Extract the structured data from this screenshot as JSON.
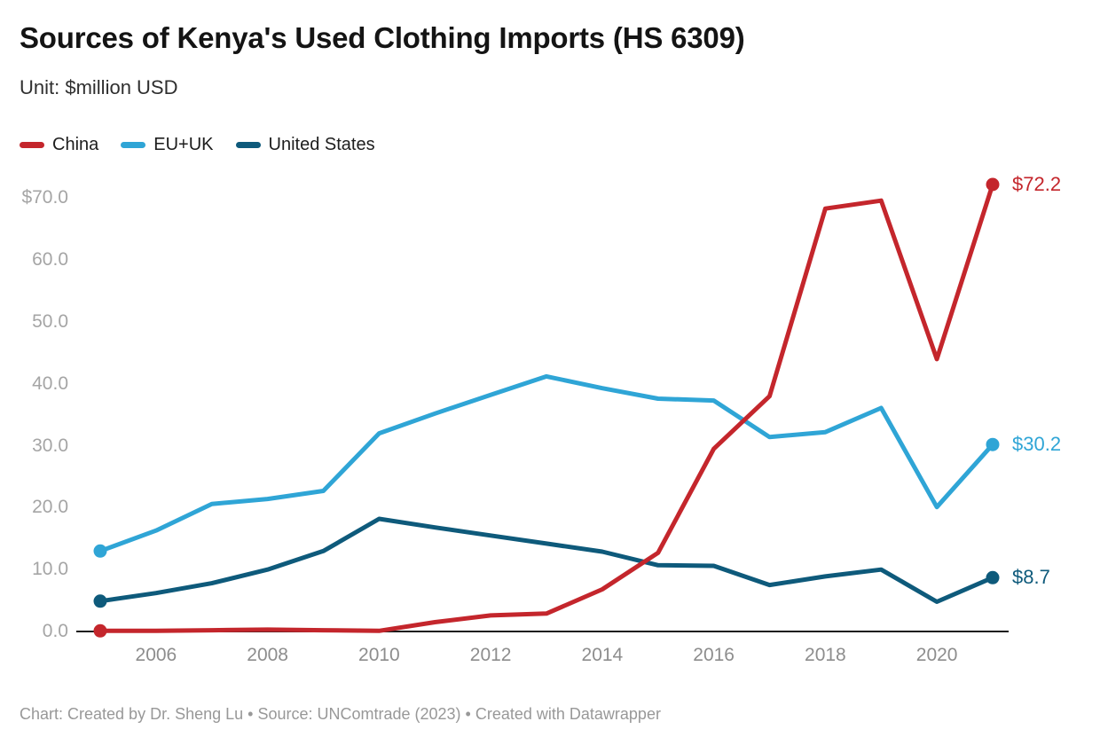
{
  "header": {
    "title": "Sources of Kenya's Used Clothing Imports (HS 6309)",
    "subtitle": "Unit: $million USD"
  },
  "footer": {
    "text": "Chart: Created by Dr. Sheng Lu • Source: UNComtrade (2023) • Created with Datawrapper"
  },
  "colors": {
    "china": "#c4262c",
    "eu_uk": "#2fa5d6",
    "united_states": "#0e5a7b",
    "axis_line": "#1a1a1a",
    "y_tick_text": "#a5a5a5",
    "x_tick_text": "#8d8d8d"
  },
  "chart_data": {
    "type": "line",
    "title": "Sources of Kenya's Used Clothing Imports (HS 6309)",
    "unit": "$million USD",
    "xlabel": "",
    "ylabel": "$million USD",
    "grid": false,
    "legend_position": "top-left",
    "x": [
      2005,
      2006,
      2007,
      2008,
      2009,
      2010,
      2011,
      2012,
      2013,
      2014,
      2015,
      2016,
      2017,
      2018,
      2019,
      2020,
      2021
    ],
    "series": [
      {
        "name": "China",
        "color": "#c4262c",
        "end_label": "$72.2",
        "values": [
          0.1,
          0.1,
          0.2,
          0.3,
          0.2,
          0.1,
          1.5,
          2.6,
          2.9,
          6.8,
          12.7,
          29.5,
          38.0,
          68.3,
          69.6,
          44.0,
          72.2
        ]
      },
      {
        "name": "EU+UK",
        "color": "#2fa5d6",
        "end_label": "$30.2",
        "values": [
          13.0,
          16.3,
          20.6,
          21.4,
          22.7,
          32.0,
          35.2,
          38.2,
          41.2,
          39.3,
          37.6,
          37.3,
          31.4,
          32.2,
          36.1,
          20.1,
          30.2
        ]
      },
      {
        "name": "United States",
        "color": "#0e5a7b",
        "end_label": "$8.7",
        "values": [
          4.9,
          6.2,
          7.8,
          10.0,
          13.0,
          18.2,
          16.8,
          15.5,
          14.2,
          12.9,
          10.7,
          10.6,
          7.5,
          8.9,
          10.0,
          4.8,
          8.7
        ]
      }
    ],
    "x_ticks": [
      {
        "year": 2006,
        "label": "2006"
      },
      {
        "year": 2008,
        "label": "2008"
      },
      {
        "year": 2010,
        "label": "2010"
      },
      {
        "year": 2012,
        "label": "2012"
      },
      {
        "year": 2014,
        "label": "2014"
      },
      {
        "year": 2016,
        "label": "2016"
      },
      {
        "year": 2018,
        "label": "2018"
      },
      {
        "year": 2020,
        "label": "2020"
      }
    ],
    "y_ticks": [
      {
        "value": 70,
        "label": "$70.0"
      },
      {
        "value": 60,
        "label": "60.0"
      },
      {
        "value": 50,
        "label": "50.0"
      },
      {
        "value": 40,
        "label": "40.0"
      },
      {
        "value": 30,
        "label": "30.0"
      },
      {
        "value": 20,
        "label": "20.0"
      },
      {
        "value": 10,
        "label": "10.0"
      },
      {
        "value": 0,
        "label": "0.0"
      }
    ],
    "xlim": [
      2005,
      2021
    ],
    "ylim": [
      0,
      72.2
    ]
  }
}
